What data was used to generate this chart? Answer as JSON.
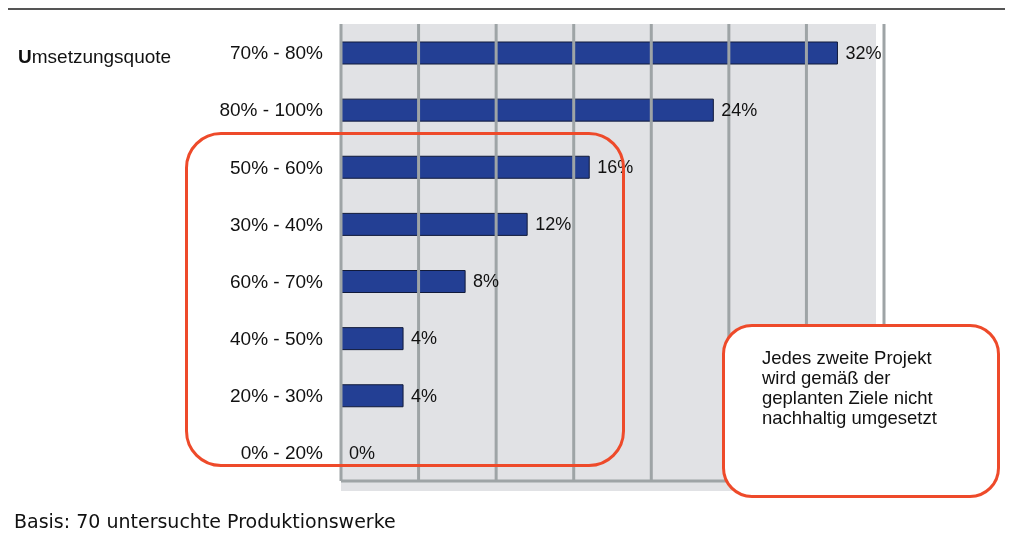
{
  "chart_data": {
    "type": "bar",
    "orientation": "horizontal",
    "ylabel": "Umsetzungsquote",
    "categories": [
      "70% - 80%",
      "80% - 100%",
      "50% - 60%",
      "30% - 40%",
      "60% - 70%",
      "40% - 50%",
      "20% - 30%",
      "0% - 20%"
    ],
    "values": [
      32,
      24,
      16,
      12,
      8,
      4,
      4,
      0
    ],
    "value_labels": [
      "32%",
      "24%",
      "16%",
      "12%",
      "8%",
      "4%",
      "4%",
      "0%"
    ],
    "color": "#233f94",
    "xlim": [
      0,
      35
    ],
    "xticks": [
      {
        "value": 0,
        "label": null
      },
      {
        "value": 5,
        "label": null
      },
      {
        "value": 10,
        "label": null
      },
      {
        "value": 15,
        "label": null
      },
      {
        "value": 20,
        "label": null
      },
      {
        "value": 25,
        "label": null
      },
      {
        "value": 30,
        "label": null
      },
      {
        "value": 35,
        "label": null
      }
    ],
    "grid": "x",
    "tick_labels": "y",
    "annotations": [
      "Jedes zweite Projekt wird gemäß der geplanten Ziele nicht nachhaltig umgesetzt",
      "Basis: 70 untersuchte Produktionswerke"
    ]
  }
}
